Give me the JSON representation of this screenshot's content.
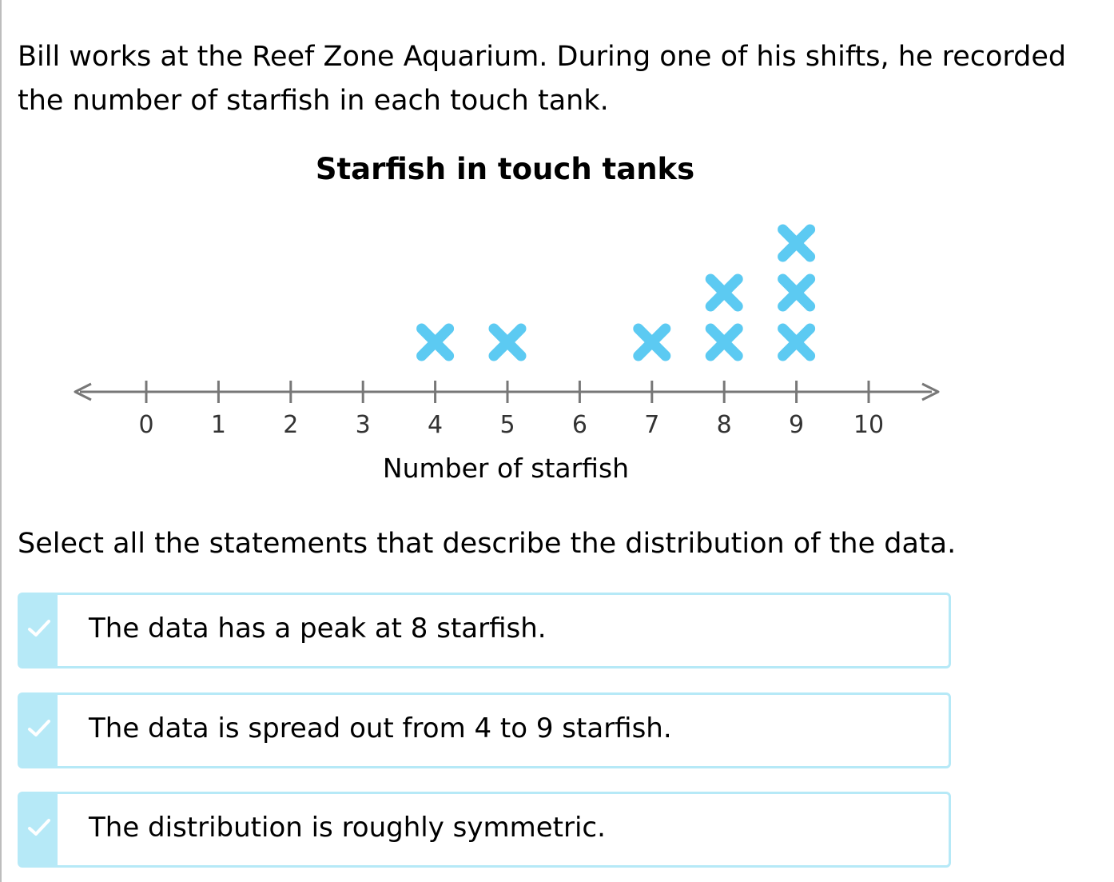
{
  "question": {
    "intro_line1": "Bill works at the Reef Zone Aquarium. During one of his shifts, he recorded",
    "intro_line2": "the number of starfish in each touch tank.",
    "prompt": "Select all the statements that describe the distribution of the data."
  },
  "chart_data": {
    "type": "line plot (dot plot)",
    "title": "Starfish in touch tanks",
    "xlabel": "Number of starfish",
    "ylabel": "",
    "xlim": [
      0,
      10
    ],
    "ticks": [
      "0",
      "1",
      "2",
      "3",
      "4",
      "5",
      "6",
      "7",
      "8",
      "9",
      "10"
    ],
    "marker": "x",
    "marker_color": "#5ccaf2",
    "points": [
      {
        "x": 4,
        "count": 1
      },
      {
        "x": 5,
        "count": 1
      },
      {
        "x": 7,
        "count": 1
      },
      {
        "x": 8,
        "count": 2
      },
      {
        "x": 9,
        "count": 3
      }
    ]
  },
  "choices": [
    {
      "label": "The data has a peak at 8 starfish.",
      "icon": "check-icon"
    },
    {
      "label": "The data is spread out from 4 to 9 starfish.",
      "icon": "check-icon"
    },
    {
      "label": "The distribution is roughly symmetric.",
      "icon": "check-icon"
    }
  ],
  "colors": {
    "accent_light": "#b6e9f7",
    "marker": "#5ccaf2",
    "axis": "#777777"
  }
}
